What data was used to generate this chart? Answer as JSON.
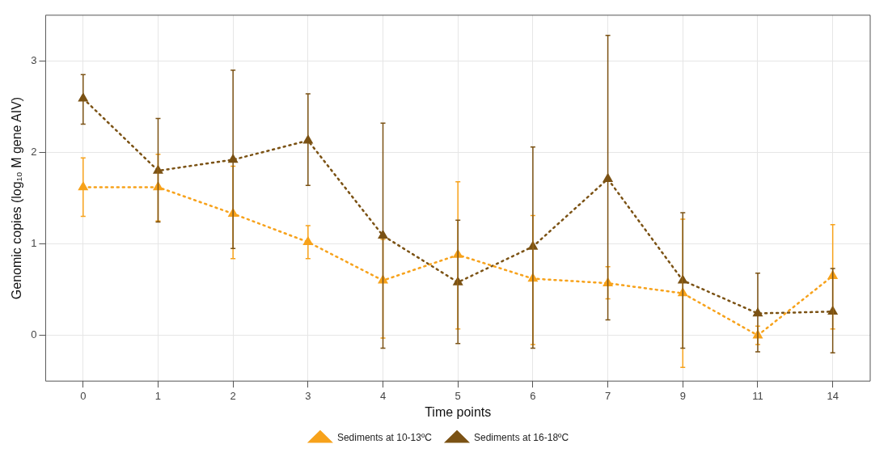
{
  "chart_data": {
    "type": "line",
    "xlabel": "Time points",
    "ylabel": "Genomic copies (log₁₀ M gene AIV)",
    "categories": [
      "0",
      "1",
      "2",
      "3",
      "4",
      "5",
      "6",
      "7",
      "9",
      "11",
      "14"
    ],
    "series": [
      {
        "name": "Sediments at 10-13ºC",
        "color": "#f7a21b",
        "values": [
          1.62,
          1.62,
          1.33,
          1.02,
          0.6,
          0.88,
          0.62,
          0.57,
          0.46,
          0.0,
          0.65
        ],
        "errors": [
          [
            1.3,
            1.94
          ],
          [
            1.25,
            1.98
          ],
          [
            0.84,
            1.85
          ],
          [
            0.84,
            1.2
          ],
          [
            -0.03,
            1.05
          ],
          [
            0.07,
            1.68
          ],
          [
            -0.1,
            1.31
          ],
          [
            0.4,
            0.75
          ],
          [
            -0.35,
            1.27
          ],
          [
            -0.1,
            0.1
          ],
          [
            0.07,
            1.21
          ]
        ]
      },
      {
        "name": "Sediments at 16-18ºC",
        "color": "#7b5214",
        "values": [
          2.59,
          1.8,
          1.92,
          2.13,
          1.09,
          0.58,
          0.97,
          1.71,
          0.6,
          0.24,
          0.26
        ],
        "errors": [
          [
            2.31,
            2.85
          ],
          [
            1.24,
            2.37
          ],
          [
            0.95,
            2.9
          ],
          [
            1.64,
            2.64
          ],
          [
            -0.14,
            2.32
          ],
          [
            -0.09,
            1.26
          ],
          [
            -0.14,
            2.06
          ],
          [
            0.17,
            3.28
          ],
          [
            -0.14,
            1.34
          ],
          [
            -0.18,
            0.68
          ],
          [
            -0.19,
            0.73
          ]
        ]
      }
    ],
    "ylim": [
      -0.5,
      3.5
    ],
    "yticks": [
      0,
      1,
      2,
      3
    ],
    "grid": true,
    "legend": "bottom",
    "marker": "triangle",
    "line_style": "dotted"
  }
}
